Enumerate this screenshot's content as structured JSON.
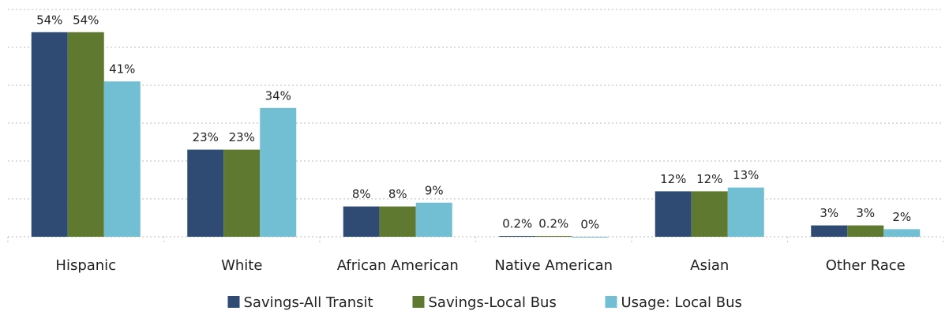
{
  "chart_data": {
    "type": "bar",
    "categories": [
      "Hispanic",
      "White",
      "African American",
      "Native American",
      "Asian",
      "Other Race"
    ],
    "series": [
      {
        "name": "Savings-All Transit",
        "color": "#2f4b74",
        "values": [
          54,
          23,
          8,
          0.2,
          12,
          3
        ],
        "value_labels": [
          "54%",
          "23%",
          "8%",
          "0.2%",
          "12%",
          "3%"
        ]
      },
      {
        "name": "Savings-Local Bus",
        "color": "#5f7a30",
        "values": [
          54,
          23,
          8,
          0.2,
          12,
          3
        ],
        "value_labels": [
          "54%",
          "23%",
          "8%",
          "0.2%",
          "12%",
          "3%"
        ]
      },
      {
        "name": "Usage: Local Bus",
        "color": "#72bfd4",
        "values": [
          41,
          34,
          9,
          0,
          13,
          2
        ],
        "value_labels": [
          "41%",
          "34%",
          "9%",
          "0%",
          "13%",
          "2%"
        ]
      }
    ],
    "ylim": [
      0,
      60
    ],
    "yticks": [
      0,
      10,
      20,
      30,
      40,
      50,
      60
    ],
    "grid": true,
    "legend": "bottom"
  }
}
